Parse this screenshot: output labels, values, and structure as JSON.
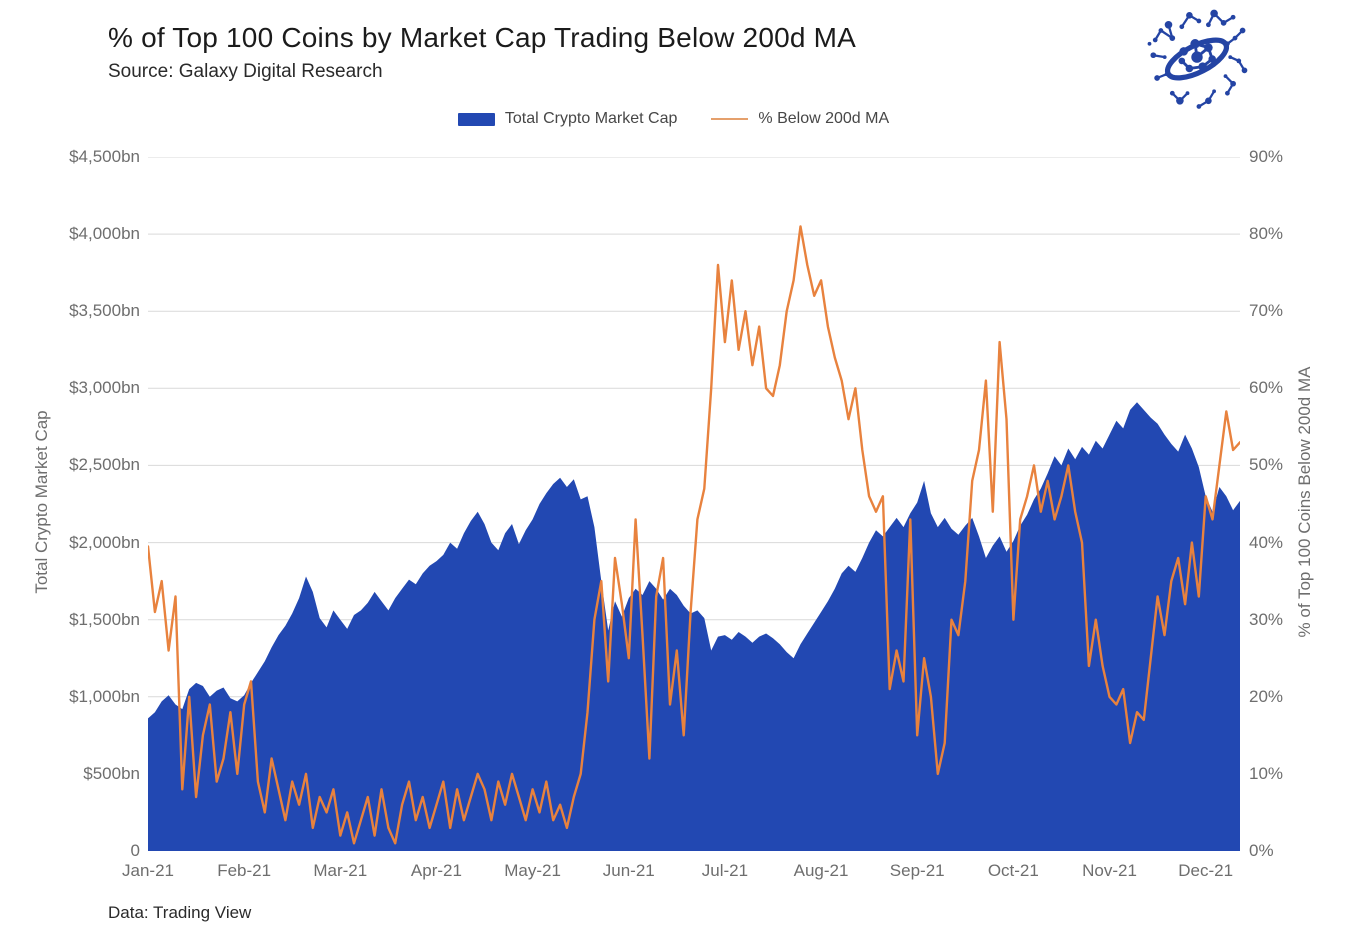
{
  "header": {
    "title": "% of Top 100 Coins by Market Cap Trading Below 200d MA",
    "source": "Source: Galaxy Digital Research"
  },
  "footer": {
    "note": "Data: Trading View"
  },
  "legend": {
    "market_cap_label": "Total Crypto Market Cap",
    "pct_label": "% Below 200d MA"
  },
  "colors": {
    "market_cap_area": "#2248b2",
    "pct_line": "#e8823e",
    "grid": "#d9d9d9",
    "axis_text": "#6e6e6e",
    "logo_blue": "#2444a4"
  },
  "chart_data": {
    "type": "area+line",
    "title": "% of Top 100 Coins by Market Cap Trading Below 200d MA",
    "categories": [
      "Jan-21",
      "Feb-21",
      "Mar-21",
      "Apr-21",
      "May-21",
      "Jun-21",
      "Jul-21",
      "Aug-21",
      "Sep-21",
      "Oct-21",
      "Nov-21",
      "Dec-21"
    ],
    "points_per_month": 14,
    "last_month_points": 6,
    "grid": "horizontal",
    "legend_position": "top",
    "left_axis": {
      "title": "Total Crypto Market Cap",
      "max": 4500,
      "min": 0,
      "tick_values": [
        4500,
        4000,
        3500,
        3000,
        2500,
        2000,
        1500,
        1000,
        500,
        0
      ],
      "tick_labels": [
        "$4,500bn",
        "$4,000bn",
        "$3,500bn",
        "$3,000bn",
        "$2,500bn",
        "$2,000bn",
        "$1,500bn",
        "$1,000bn",
        "$500bn",
        "0"
      ]
    },
    "right_axis": {
      "title": "% of Top 100 Coins Below 200d MA",
      "max": 90,
      "min": 0,
      "tick_values": [
        90,
        80,
        70,
        60,
        50,
        40,
        30,
        20,
        10,
        0
      ],
      "tick_labels": [
        "90%",
        "80%",
        "70%",
        "60%",
        "50%",
        "40%",
        "30%",
        "20%",
        "10%",
        "0%"
      ]
    },
    "series": [
      {
        "name": "Total Crypto Market Cap",
        "type": "area",
        "unit": "$bn",
        "axis": "left",
        "color": "#2248b2",
        "values": [
          860,
          900,
          970,
          1010,
          950,
          920,
          1050,
          1090,
          1070,
          1000,
          1040,
          1060,
          990,
          970,
          1010,
          1090,
          1160,
          1230,
          1320,
          1400,
          1460,
          1540,
          1640,
          1780,
          1680,
          1510,
          1450,
          1560,
          1500,
          1440,
          1530,
          1560,
          1610,
          1680,
          1620,
          1560,
          1640,
          1700,
          1760,
          1730,
          1800,
          1850,
          1880,
          1920,
          2000,
          1960,
          2060,
          2140,
          2200,
          2120,
          2000,
          1950,
          2060,
          2120,
          1990,
          2080,
          2150,
          2250,
          2320,
          2380,
          2420,
          2360,
          2410,
          2280,
          2300,
          2100,
          1750,
          1430,
          1620,
          1520,
          1640,
          1700,
          1660,
          1750,
          1700,
          1630,
          1700,
          1660,
          1590,
          1540,
          1560,
          1510,
          1300,
          1390,
          1400,
          1370,
          1420,
          1390,
          1350,
          1390,
          1410,
          1380,
          1340,
          1290,
          1250,
          1340,
          1410,
          1480,
          1550,
          1620,
          1700,
          1800,
          1850,
          1810,
          1900,
          2000,
          2080,
          2040,
          2100,
          2160,
          2100,
          2190,
          2260,
          2400,
          2190,
          2100,
          2160,
          2090,
          2050,
          2110,
          2160,
          2040,
          1900,
          1980,
          2040,
          1940,
          2010,
          2110,
          2180,
          2280,
          2350,
          2450,
          2560,
          2500,
          2610,
          2540,
          2620,
          2570,
          2660,
          2610,
          2700,
          2790,
          2740,
          2860,
          2910,
          2860,
          2810,
          2770,
          2700,
          2640,
          2590,
          2700,
          2610,
          2490,
          2300,
          2200,
          2360,
          2300,
          2210,
          2270
        ]
      },
      {
        "name": "% Below 200d MA",
        "type": "line",
        "unit": "%",
        "axis": "right",
        "color": "#e8823e",
        "values": [
          39.5,
          31,
          35,
          26,
          33,
          8,
          20,
          7,
          15,
          19,
          9,
          12,
          18,
          10,
          19,
          22,
          9,
          5,
          12,
          8,
          4,
          9,
          6,
          10,
          3,
          7,
          5,
          8,
          2,
          5,
          1,
          4,
          7,
          2,
          8,
          3,
          1,
          6,
          9,
          4,
          7,
          3,
          6,
          9,
          3,
          8,
          4,
          7,
          10,
          8,
          4,
          9,
          6,
          10,
          7,
          4,
          8,
          5,
          9,
          4,
          6,
          3,
          7,
          10,
          18,
          30,
          35,
          22,
          38,
          32,
          25,
          43,
          28,
          12,
          33,
          38,
          19,
          26,
          15,
          31,
          43,
          47,
          60,
          76,
          66,
          74,
          65,
          70,
          63,
          68,
          60,
          59,
          63,
          70,
          74,
          81,
          76,
          72,
          74,
          68,
          64,
          61,
          56,
          60,
          52,
          46,
          44,
          46,
          21,
          26,
          22,
          43,
          15,
          25,
          20,
          10,
          14,
          30,
          28,
          35,
          48,
          52,
          61,
          44,
          66,
          56,
          30,
          43,
          46,
          50,
          44,
          48,
          43,
          46,
          50,
          44,
          40,
          24,
          30,
          24,
          20,
          19,
          21,
          14,
          18,
          17,
          25,
          33,
          28,
          35,
          38,
          32,
          40,
          33,
          46,
          43,
          50,
          57,
          52,
          53
        ]
      }
    ]
  }
}
